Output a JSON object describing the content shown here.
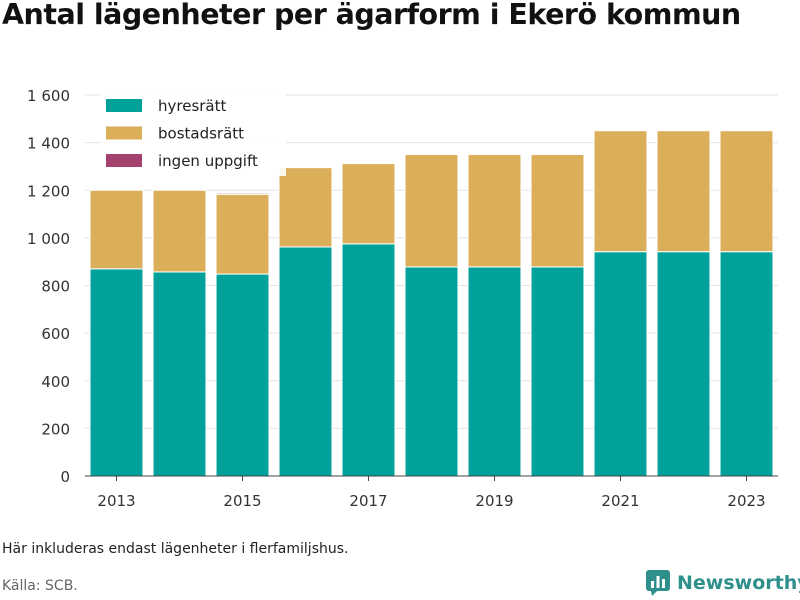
{
  "title": "Antal lägenheter per ägarform i Ekerö kommun",
  "note": "Här inkluderas endast lägenheter i flerfamiljshus.",
  "source": "Källa: SCB.",
  "brand": "Newsworthy",
  "chart_data": {
    "type": "bar",
    "stacked": true,
    "title": "Antal lägenheter per ägarform i Ekerö kommun",
    "xlabel": "",
    "ylabel": "",
    "categories": [
      "2013",
      "2014",
      "2015",
      "2016",
      "2017",
      "2018",
      "2019",
      "2020",
      "2021",
      "2022",
      "2023"
    ],
    "x_tick_labels": [
      "2013",
      "2015",
      "2017",
      "2019",
      "2021",
      "2023"
    ],
    "y_ticks": [
      0,
      200,
      400,
      600,
      800,
      1000,
      1200,
      1400,
      1600
    ],
    "y_tick_labels": [
      "0",
      "200",
      "400",
      "600",
      "800",
      "1 000",
      "1 200",
      "1 400",
      "1 600"
    ],
    "ylim": [
      0,
      1600
    ],
    "grid": true,
    "legend_position": "top-left",
    "series": [
      {
        "name": "hyresrätt",
        "color": "#00a19a",
        "values": [
          870,
          857,
          848,
          962,
          975,
          878,
          878,
          878,
          942,
          942,
          942
        ]
      },
      {
        "name": "bostadsrätt",
        "color": "#dbae5a",
        "values": [
          330,
          343,
          335,
          333,
          337,
          472,
          472,
          472,
          508,
          508,
          508
        ]
      },
      {
        "name": "ingen uppgift",
        "color": "#a3426e",
        "values": [
          0,
          0,
          5,
          0,
          0,
          0,
          0,
          0,
          0,
          0,
          0
        ]
      }
    ]
  }
}
